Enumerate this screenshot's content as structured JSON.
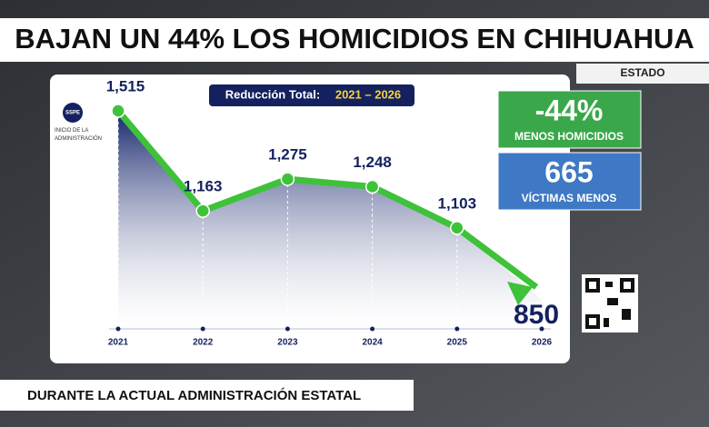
{
  "headline": "BAJAN UN 44% LOS HOMICIDIOS EN CHIHUAHUA",
  "tag": "ESTADO",
  "footer": "DURANTE LA ACTUAL ADMINISTRACIÓN ESTATAL",
  "chart_data": {
    "type": "line",
    "title": "Reducción Total:",
    "title_range": "2021 – 2026",
    "logo": "SSPE",
    "annotation": "INICIO DE LA ADMINISTRACIÓN",
    "categories": [
      "2021",
      "2022",
      "2023",
      "2024",
      "2025",
      "2026"
    ],
    "values": [
      1515,
      1163,
      1275,
      1248,
      1103,
      850
    ],
    "value_labels": [
      "1,515",
      "1,163",
      "1,275",
      "1,248",
      "1,103",
      "850"
    ],
    "color": "#3ec23a",
    "stats": [
      {
        "value": "-44%",
        "label": "MENOS HOMICIDIOS",
        "color": "#3aa84a"
      },
      {
        "value": "665",
        "label": "VÍCTIMAS MENOS",
        "color": "#3f78c4"
      }
    ]
  }
}
